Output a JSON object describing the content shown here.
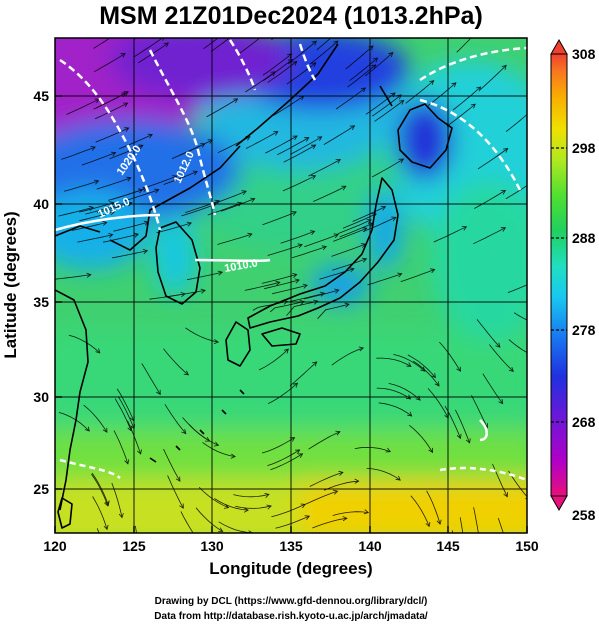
{
  "title": "MSM 21Z01Dec2024 (1013.2hPa)",
  "map": {
    "x_axis": {
      "label": "Longitude (degrees)",
      "range": [
        120,
        150
      ],
      "ticks": [
        "120",
        "125",
        "130",
        "135",
        "140",
        "145",
        "150"
      ]
    },
    "y_axis": {
      "label": "Latitude  (degrees)",
      "range": [
        22.4,
        47.6
      ],
      "ticks": [
        "25",
        "30",
        "35",
        "40",
        "45"
      ]
    },
    "grid": true,
    "field": "temperature",
    "vectors": "wind streamlines",
    "contours": {
      "labels": [
        "1020.0",
        "1015.0",
        "1012.0",
        "1010.0"
      ]
    }
  },
  "colorbar": {
    "min": 258,
    "max": 308,
    "ticks": [
      "308",
      "298",
      "288",
      "278",
      "268",
      "258"
    ],
    "colors": [
      "#e8107a",
      "#b000c8",
      "#6a18d8",
      "#2030e0",
      "#1878f0",
      "#18c8f0",
      "#20e0c0",
      "#20d060",
      "#50e030",
      "#b0e820",
      "#f0e000",
      "#f8b000",
      "#f87820",
      "#f04030"
    ]
  },
  "credits": {
    "line1": "Drawing by DCL (https://www.gfd-dennou.org/library/dcl/)",
    "line2": "Data from http://database.rish.kyoto-u.ac.jp/arch/jmadata/"
  }
}
